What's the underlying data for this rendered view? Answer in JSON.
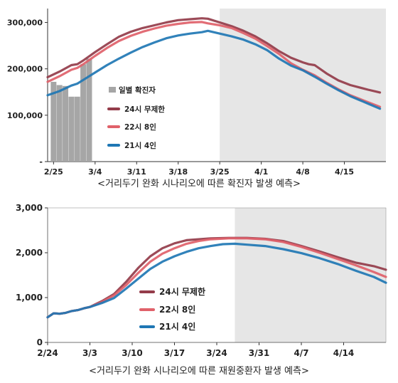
{
  "chart_data": [
    {
      "type": "line",
      "title": "",
      "caption": "<거리두기 완화 시나리오에 따른 확진자 발생 예측>",
      "xlabel": "",
      "ylabel": "",
      "x_ticks": [
        "2/25",
        "3/4",
        "3/11",
        "3/18",
        "3/25",
        "4/1",
        "4/8",
        "4/15"
      ],
      "x_tick_days": [
        0,
        7,
        14,
        21,
        28,
        35,
        42,
        49
      ],
      "y_ticks": [
        "-",
        "100,000",
        "200,000",
        "300,000"
      ],
      "xlim": [
        "2/24",
        "4/20"
      ],
      "xlim_days": [
        -1,
        56
      ],
      "ylim": [
        0,
        330000
      ],
      "grid": false,
      "legend_position": "middle-left",
      "forecast_region_start": "3/25",
      "forecast_region_start_day": 28,
      "colors": {
        "bar": "#a6a6a6",
        "s24": "#943c4a",
        "s22": "#e0616a",
        "s21": "#1f77b4",
        "shade": "#e6e6e6"
      },
      "bars": {
        "name": "일별 확진자",
        "x_days": [
          0,
          1,
          2,
          3,
          4,
          5,
          6
        ],
        "values": [
          172000,
          165000,
          163000,
          140000,
          140000,
          210000,
          222000
        ]
      },
      "series": [
        {
          "name": "24시 무제한",
          "color_key": "s24",
          "points": [
            [
              -1,
              182000
            ],
            [
              1,
              194000
            ],
            [
              3,
              208000
            ],
            [
              4,
              210000
            ],
            [
              5,
              218000
            ],
            [
              7,
              236000
            ],
            [
              9,
              253000
            ],
            [
              11,
              269000
            ],
            [
              13,
              280000
            ],
            [
              15,
              288000
            ],
            [
              17,
              294000
            ],
            [
              19,
              300000
            ],
            [
              21,
              305000
            ],
            [
              23,
              307000
            ],
            [
              25,
              309000
            ],
            [
              26,
              308000
            ],
            [
              28,
              300000
            ],
            [
              30,
              292000
            ],
            [
              32,
              282000
            ],
            [
              34,
              270000
            ],
            [
              36,
              255000
            ],
            [
              38,
              238000
            ],
            [
              40,
              224000
            ],
            [
              42,
              214000
            ],
            [
              43,
              210000
            ],
            [
              44,
              208000
            ],
            [
              46,
              190000
            ],
            [
              48,
              175000
            ],
            [
              50,
              165000
            ],
            [
              53,
              155000
            ],
            [
              55,
              149000
            ]
          ]
        },
        {
          "name": "22시 8인",
          "color_key": "s22",
          "points": [
            [
              -1,
              172000
            ],
            [
              1,
              184000
            ],
            [
              3,
              198000
            ],
            [
              4,
              202000
            ],
            [
              5,
              210000
            ],
            [
              7,
              228000
            ],
            [
              9,
              245000
            ],
            [
              11,
              260000
            ],
            [
              13,
              271000
            ],
            [
              15,
              280000
            ],
            [
              17,
              287000
            ],
            [
              19,
              293000
            ],
            [
              21,
              297000
            ],
            [
              23,
              300000
            ],
            [
              25,
              301000
            ],
            [
              26,
              298000
            ],
            [
              28,
              294000
            ],
            [
              30,
              288000
            ],
            [
              32,
              277000
            ],
            [
              34,
              265000
            ],
            [
              36,
              249000
            ],
            [
              38,
              232000
            ],
            [
              40,
              212000
            ],
            [
              42,
              198000
            ],
            [
              44,
              186000
            ],
            [
              46,
              170000
            ],
            [
              48,
              156000
            ],
            [
              50,
              143000
            ],
            [
              53,
              128000
            ],
            [
              55,
              118000
            ]
          ]
        },
        {
          "name": "21시 4인",
          "color_key": "s21",
          "points": [
            [
              -1,
              143000
            ],
            [
              1,
              152000
            ],
            [
              3,
              164000
            ],
            [
              4,
              168000
            ],
            [
              5,
              176000
            ],
            [
              7,
              192000
            ],
            [
              9,
              208000
            ],
            [
              11,
              222000
            ],
            [
              13,
              235000
            ],
            [
              15,
              247000
            ],
            [
              17,
              257000
            ],
            [
              19,
              266000
            ],
            [
              21,
              272000
            ],
            [
              23,
              276000
            ],
            [
              25,
              279000
            ],
            [
              26,
              282000
            ],
            [
              28,
              276000
            ],
            [
              30,
              270000
            ],
            [
              32,
              263000
            ],
            [
              34,
              253000
            ],
            [
              36,
              240000
            ],
            [
              38,
              222000
            ],
            [
              40,
              207000
            ],
            [
              42,
              197000
            ],
            [
              44,
              183000
            ],
            [
              46,
              168000
            ],
            [
              48,
              154000
            ],
            [
              50,
              141000
            ],
            [
              53,
              125000
            ],
            [
              55,
              114000
            ]
          ]
        }
      ]
    },
    {
      "type": "line",
      "title": "",
      "caption": "<거리두기 완화 시나리오에 따른 재원중환자 발생 예측>",
      "xlabel": "",
      "ylabel": "",
      "x_ticks": [
        "2/24",
        "3/3",
        "3/10",
        "3/17",
        "3/24",
        "3/31",
        "4/7",
        "4/14"
      ],
      "x_tick_days": [
        0,
        7,
        14,
        21,
        28,
        35,
        42,
        49
      ],
      "y_ticks": [
        "0",
        "1,000",
        "2,000",
        "3,000"
      ],
      "xlim": [
        "2/24",
        "4/20"
      ],
      "xlim_days": [
        0,
        56
      ],
      "ylim": [
        0,
        3000
      ],
      "grid": false,
      "legend_position": "bottom-center",
      "forecast_region_start": "3/27",
      "forecast_region_start_day": 31,
      "colors": {
        "s24": "#943c4a",
        "s22": "#e0616a",
        "s21": "#1f77b4",
        "shade": "#e6e6e6"
      },
      "series": [
        {
          "name": "24시 무제한",
          "color_key": "s24",
          "points": [
            [
              0,
              560
            ],
            [
              1,
              650
            ],
            [
              2,
              640
            ],
            [
              3,
              660
            ],
            [
              4,
              700
            ],
            [
              5,
              720
            ],
            [
              6,
              760
            ],
            [
              7,
              790
            ],
            [
              9,
              920
            ],
            [
              11,
              1080
            ],
            [
              13,
              1350
            ],
            [
              15,
              1660
            ],
            [
              17,
              1920
            ],
            [
              19,
              2100
            ],
            [
              21,
              2210
            ],
            [
              23,
              2280
            ],
            [
              25,
              2300
            ],
            [
              27,
              2320
            ],
            [
              30,
              2330
            ],
            [
              33,
              2330
            ],
            [
              36,
              2310
            ],
            [
              39,
              2260
            ],
            [
              42,
              2150
            ],
            [
              45,
              2030
            ],
            [
              48,
              1900
            ],
            [
              51,
              1780
            ],
            [
              54,
              1700
            ],
            [
              56,
              1620
            ]
          ]
        },
        {
          "name": "22시 8인",
          "color_key": "s22",
          "points": [
            [
              0,
              560
            ],
            [
              1,
              650
            ],
            [
              2,
              640
            ],
            [
              3,
              660
            ],
            [
              4,
              700
            ],
            [
              5,
              720
            ],
            [
              6,
              760
            ],
            [
              7,
              790
            ],
            [
              9,
              900
            ],
            [
              11,
              1050
            ],
            [
              13,
              1280
            ],
            [
              15,
              1550
            ],
            [
              17,
              1800
            ],
            [
              19,
              1980
            ],
            [
              21,
              2100
            ],
            [
              23,
              2200
            ],
            [
              25,
              2260
            ],
            [
              27,
              2300
            ],
            [
              30,
              2320
            ],
            [
              33,
              2320
            ],
            [
              36,
              2300
            ],
            [
              39,
              2240
            ],
            [
              42,
              2130
            ],
            [
              45,
              2000
            ],
            [
              48,
              1860
            ],
            [
              51,
              1720
            ],
            [
              54,
              1570
            ],
            [
              56,
              1460
            ]
          ]
        },
        {
          "name": "21시 4인",
          "color_key": "s21",
          "points": [
            [
              0,
              560
            ],
            [
              1,
              650
            ],
            [
              2,
              640
            ],
            [
              3,
              660
            ],
            [
              4,
              700
            ],
            [
              5,
              720
            ],
            [
              6,
              760
            ],
            [
              7,
              790
            ],
            [
              9,
              880
            ],
            [
              11,
              990
            ],
            [
              13,
              1200
            ],
            [
              15,
              1420
            ],
            [
              17,
              1640
            ],
            [
              19,
              1800
            ],
            [
              21,
              1920
            ],
            [
              23,
              2020
            ],
            [
              25,
              2100
            ],
            [
              27,
              2150
            ],
            [
              29,
              2190
            ],
            [
              31,
              2200
            ],
            [
              33,
              2180
            ],
            [
              36,
              2150
            ],
            [
              39,
              2080
            ],
            [
              42,
              1990
            ],
            [
              45,
              1880
            ],
            [
              48,
              1750
            ],
            [
              51,
              1600
            ],
            [
              54,
              1460
            ],
            [
              56,
              1330
            ]
          ]
        }
      ]
    }
  ]
}
